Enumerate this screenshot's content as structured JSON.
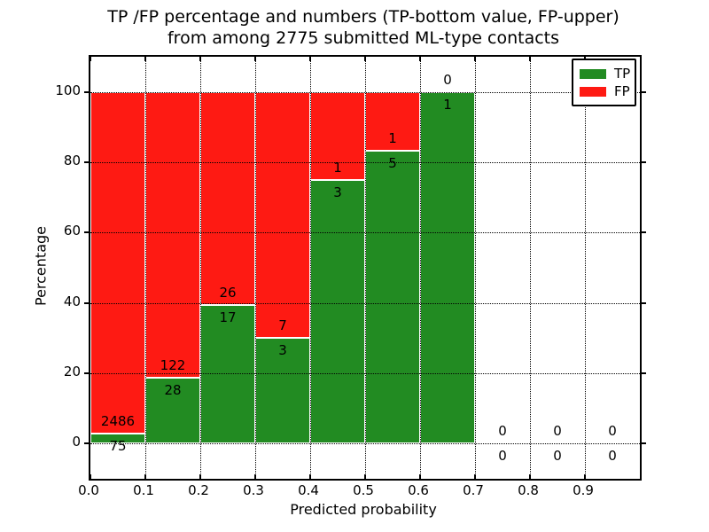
{
  "chart_data": {
    "type": "bar",
    "stacked": true,
    "normalized_to_percent": true,
    "title": "TP /FP percentage and numbers (TP-bottom value, FP-upper) from among 2775 submitted ML-type contacts",
    "title_line1": "TP /FP percentage and numbers (TP-bottom value, FP-upper)",
    "title_line2": "from among 2775 submitted ML-type contacts",
    "xlabel": "Predicted probability",
    "ylabel": "Percentage",
    "xlim": [
      0.0,
      1.0
    ],
    "ylim": [
      -10,
      110
    ],
    "grid": "dotted",
    "total_contacts": 2775,
    "categories": [
      "0.0-0.1",
      "0.1-0.2",
      "0.2-0.3",
      "0.3-0.4",
      "0.4-0.5",
      "0.5-0.6",
      "0.6-0.7",
      "0.7-0.8",
      "0.8-0.9",
      "0.9-1.0"
    ],
    "bin_edges": [
      0.0,
      0.1,
      0.2,
      0.3,
      0.4,
      0.5,
      0.6,
      0.7,
      0.8,
      0.9,
      1.0
    ],
    "x_ticks": [
      "0.0",
      "0.1",
      "0.2",
      "0.3",
      "0.4",
      "0.5",
      "0.6",
      "0.7",
      "0.8",
      "0.9"
    ],
    "x_tick_values": [
      0.0,
      0.1,
      0.2,
      0.3,
      0.4,
      0.5,
      0.6,
      0.7,
      0.8,
      0.9
    ],
    "y_ticks": [
      "0",
      "20",
      "40",
      "60",
      "80",
      "100"
    ],
    "y_tick_values": [
      0,
      20,
      40,
      60,
      80,
      100
    ],
    "series": [
      {
        "name": "TP",
        "color": "#228b22",
        "values": [
          75,
          28,
          17,
          3,
          3,
          5,
          1,
          0,
          0,
          0
        ]
      },
      {
        "name": "FP",
        "color": "#fe1a13",
        "values": [
          2486,
          122,
          26,
          7,
          1,
          1,
          0,
          0,
          0,
          0
        ]
      }
    ],
    "tp_percent": [
      2.93,
      18.67,
      39.53,
      30.0,
      75.0,
      83.33,
      100.0,
      null,
      null,
      null
    ],
    "legend": {
      "position": "upper right",
      "entries": [
        {
          "label": "TP",
          "color": "#228b22"
        },
        {
          "label": "FP",
          "color": "#fe1a13"
        }
      ]
    },
    "annotation_note": "TP count below boundary, FP count above boundary"
  }
}
